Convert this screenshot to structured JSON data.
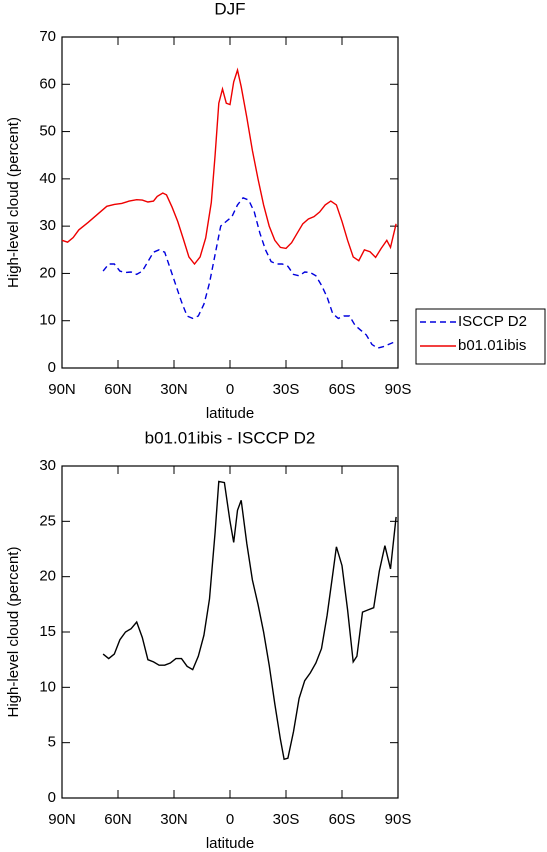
{
  "chart_data": [
    {
      "type": "line",
      "title": "DJF",
      "xlabel": "latitude",
      "ylabel": "High-level cloud (percent)",
      "xlim": [
        90,
        -90
      ],
      "xticks": [
        {
          "value": 90,
          "label": "90N"
        },
        {
          "value": 60,
          "label": "60N"
        },
        {
          "value": 30,
          "label": "30N"
        },
        0,
        {
          "value": -30,
          "label": "30S"
        },
        {
          "value": -60,
          "label": "60S"
        },
        {
          "value": -90,
          "label": "90S"
        }
      ],
      "ylim": [
        0,
        70
      ],
      "yticks": [
        0,
        10,
        20,
        30,
        40,
        50,
        60,
        70
      ],
      "legend": "right",
      "series": [
        {
          "name": "ISCCP D2",
          "color": "#0000dd",
          "dash": true,
          "x": [
            68,
            65,
            62,
            59,
            56,
            53,
            50,
            47,
            44,
            41,
            38,
            35,
            32,
            29,
            26,
            23,
            20,
            17,
            14,
            11,
            8,
            5,
            2,
            -1,
            -4,
            -7,
            -10,
            -13,
            -16,
            -19,
            -22,
            -25,
            -28,
            -31,
            -34,
            -37,
            -40,
            -43,
            -46,
            -49,
            -52,
            -55,
            -58,
            -61,
            -64,
            -67,
            -70,
            -73,
            -76,
            -79,
            -82,
            -85,
            -88
          ],
          "values": [
            20.5,
            22,
            22,
            20.5,
            20.2,
            20.3,
            19.8,
            20.5,
            22.5,
            24.5,
            25,
            24.5,
            21,
            17.5,
            14,
            11,
            10.5,
            11,
            13.5,
            18,
            24,
            30,
            31,
            32,
            34.5,
            36,
            35.5,
            33,
            28.5,
            25,
            22.5,
            22,
            22,
            21.5,
            19.8,
            19.5,
            20.3,
            20.2,
            19.5,
            17.5,
            15,
            11.5,
            10.5,
            11,
            11,
            9,
            8,
            7,
            5,
            4.2,
            4.5,
            5,
            5.5
          ]
        },
        {
          "name": "b01.01ibis",
          "color": "#ee0000",
          "dash": false,
          "x": [
            90,
            87,
            84,
            81,
            76,
            71,
            66,
            62,
            58,
            54,
            50,
            47,
            44,
            41,
            39,
            36,
            34,
            31,
            28,
            25,
            22,
            19,
            16,
            13,
            10,
            8,
            6,
            4,
            2,
            0,
            -2,
            -4,
            -6,
            -9,
            -12,
            -15,
            -18,
            -21,
            -24,
            -27,
            -30,
            -33,
            -36,
            -39,
            -42,
            -45,
            -48,
            -51,
            -54,
            -57,
            -60,
            -63,
            -66,
            -69,
            -72,
            -75,
            -78,
            -81,
            -84,
            -86,
            -89
          ],
          "values": [
            27,
            26.6,
            27.6,
            29.2,
            30.8,
            32.5,
            34.2,
            34.6,
            34.8,
            35.3,
            35.6,
            35.5,
            35.1,
            35.3,
            36.3,
            37,
            36.6,
            34,
            31,
            27.3,
            23.5,
            22,
            23.5,
            27.5,
            35,
            45,
            56,
            59,
            56,
            55.7,
            60.5,
            63,
            59.5,
            53,
            46,
            40,
            34.5,
            30,
            27,
            25.5,
            25.3,
            26.5,
            28.5,
            30.5,
            31.5,
            32,
            33,
            34.5,
            35.3,
            34.5,
            31,
            27,
            23.5,
            22.7,
            25,
            24.6,
            23.4,
            25.3,
            27,
            25.5,
            30.5
          ]
        }
      ]
    },
    {
      "type": "line",
      "title": "b01.01ibis - ISCCP D2",
      "xlabel": "latitude",
      "ylabel": "High-level cloud (percent)",
      "xlim": [
        90,
        -90
      ],
      "xticks": [
        {
          "value": 90,
          "label": "90N"
        },
        {
          "value": 60,
          "label": "60N"
        },
        {
          "value": 30,
          "label": "30N"
        },
        0,
        {
          "value": -30,
          "label": "30S"
        },
        {
          "value": -60,
          "label": "60S"
        },
        {
          "value": -90,
          "label": "90S"
        }
      ],
      "ylim": [
        0,
        30
      ],
      "yticks": [
        0,
        5,
        10,
        15,
        20,
        25,
        30
      ],
      "series": [
        {
          "color": "#000000",
          "dash": false,
          "x": [
            68,
            65,
            62,
            59,
            56,
            53,
            50,
            47,
            44,
            41,
            38,
            35,
            32,
            29,
            26,
            23,
            20,
            17,
            14,
            11,
            8,
            6,
            3,
            0,
            -2,
            -4,
            -6,
            -9,
            -12,
            -15,
            -18,
            -21,
            -24,
            -27,
            -29,
            -31,
            -34,
            -37,
            -40,
            -43,
            -46,
            -49,
            -52,
            -55,
            -57,
            -60,
            -63,
            -66,
            -68,
            -71,
            -74,
            -77,
            -80,
            -83,
            -86,
            -89
          ],
          "values": [
            13,
            12.6,
            13,
            14.3,
            15,
            15.3,
            15.9,
            14.5,
            12.5,
            12.3,
            12,
            12,
            12.2,
            12.6,
            12.6,
            11.9,
            11.6,
            12.8,
            14.7,
            18,
            24,
            28.6,
            28.5,
            25,
            23.1,
            26,
            26.9,
            23,
            19.7,
            17.5,
            15,
            12,
            8.5,
            5.3,
            3.5,
            3.6,
            6,
            9,
            10.6,
            11.3,
            12.2,
            13.5,
            16.5,
            20.2,
            22.7,
            21,
            17,
            12.3,
            12.8,
            16.8,
            17,
            17.2,
            20.5,
            22.8,
            20.7,
            25.4
          ]
        }
      ]
    }
  ]
}
